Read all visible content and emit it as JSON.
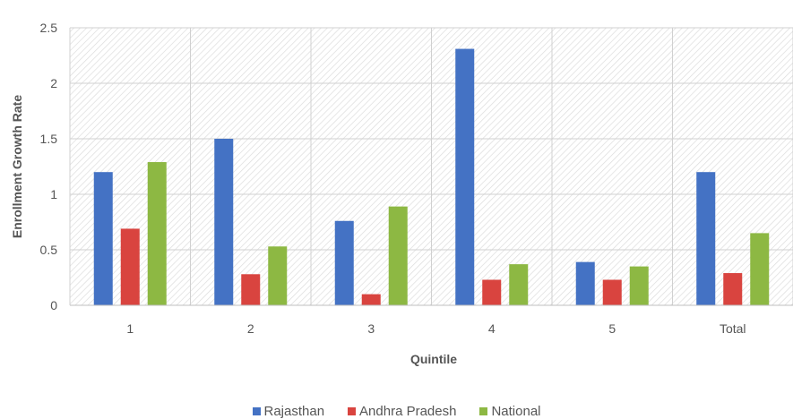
{
  "chart_data": {
    "type": "bar",
    "title": "",
    "xlabel": "Quintile",
    "ylabel": "Enrollment Growth Rate",
    "categories": [
      "1",
      "2",
      "3",
      "4",
      "5",
      "Total"
    ],
    "ylim": [
      0,
      2.5
    ],
    "yticks": [
      "0",
      "0.5",
      "1",
      "1.5",
      "2",
      "2.5"
    ],
    "grid": true,
    "legend_position": "bottom",
    "series": [
      {
        "name": "Rajasthan",
        "color": "#4472C4",
        "values": [
          1.2,
          1.5,
          0.76,
          2.31,
          0.39,
          1.2
        ]
      },
      {
        "name": "Andhra Pradesh",
        "color": "#D9443F",
        "values": [
          0.69,
          0.28,
          0.1,
          0.23,
          0.23,
          0.29
        ]
      },
      {
        "name": "National",
        "color": "#8DB843",
        "values": [
          1.29,
          0.53,
          0.89,
          0.37,
          0.35,
          0.65
        ]
      }
    ]
  }
}
